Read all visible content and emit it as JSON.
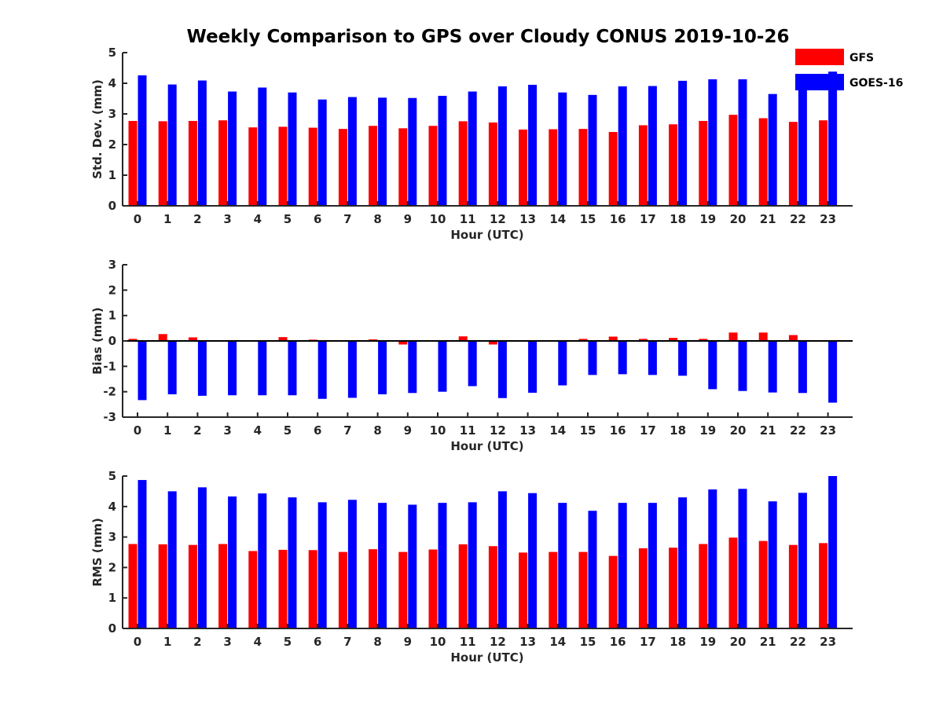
{
  "figure": {
    "title": "Weekly Comparison to GPS over Cloudy CONUS 2019-10-26"
  },
  "legend": {
    "placement": "top-right",
    "entries": [
      {
        "name": "GFS",
        "color": "#ff0000"
      },
      {
        "name": "GOES-16",
        "color": "#0000ff"
      }
    ]
  },
  "chart_data": [
    {
      "type": "bar",
      "xlabel": "Hour (UTC)",
      "ylabel": "Std. Dev. (mm)",
      "ylim": [
        0,
        5
      ],
      "yticks": [
        0,
        1,
        2,
        3,
        4,
        5
      ],
      "categories": [
        "0",
        "1",
        "2",
        "3",
        "4",
        "5",
        "6",
        "7",
        "8",
        "9",
        "10",
        "11",
        "12",
        "13",
        "14",
        "15",
        "16",
        "17",
        "18",
        "19",
        "20",
        "21",
        "22",
        "23"
      ],
      "series": [
        {
          "name": "GFS",
          "color": "#ff0000",
          "values": [
            2.77,
            2.76,
            2.77,
            2.79,
            2.56,
            2.58,
            2.55,
            2.51,
            2.61,
            2.53,
            2.61,
            2.76,
            2.72,
            2.49,
            2.5,
            2.51,
            2.41,
            2.63,
            2.66,
            2.77,
            2.97,
            2.86,
            2.74,
            2.79
          ]
        },
        {
          "name": "GOES-16",
          "color": "#0000ff",
          "values": [
            4.26,
            3.96,
            4.09,
            3.73,
            3.86,
            3.7,
            3.47,
            3.55,
            3.53,
            3.52,
            3.59,
            3.73,
            3.9,
            3.95,
            3.7,
            3.62,
            3.9,
            3.91,
            4.08,
            4.13,
            4.13,
            3.65,
            3.94,
            4.38
          ]
        }
      ]
    },
    {
      "type": "bar",
      "xlabel": "Hour (UTC)",
      "ylabel": "Bias (mm)",
      "ylim": [
        -3,
        3
      ],
      "yticks": [
        -3,
        -2,
        -1,
        0,
        1,
        2,
        3
      ],
      "categories": [
        "0",
        "1",
        "2",
        "3",
        "4",
        "5",
        "6",
        "7",
        "8",
        "9",
        "10",
        "11",
        "12",
        "13",
        "14",
        "15",
        "16",
        "17",
        "18",
        "19",
        "20",
        "21",
        "22",
        "23"
      ],
      "series": [
        {
          "name": "GFS",
          "color": "#ff0000",
          "values": [
            0.08,
            0.27,
            0.14,
            0.0,
            0.02,
            0.15,
            0.05,
            0.0,
            0.06,
            -0.14,
            0.0,
            0.18,
            -0.14,
            0.03,
            0.0,
            0.08,
            0.17,
            0.08,
            0.12,
            0.08,
            0.33,
            0.33,
            0.23,
            0.03
          ]
        },
        {
          "name": "GOES-16",
          "color": "#0000ff",
          "values": [
            -2.33,
            -2.1,
            -2.16,
            -2.14,
            -2.14,
            -2.14,
            -2.28,
            -2.24,
            -2.1,
            -2.05,
            -2.0,
            -1.78,
            -2.25,
            -2.04,
            -1.75,
            -1.34,
            -1.31,
            -1.34,
            -1.37,
            -1.9,
            -1.97,
            -2.03,
            -2.05,
            -2.43
          ]
        }
      ]
    },
    {
      "type": "bar",
      "xlabel": "Hour (UTC)",
      "ylabel": "RMS (mm)",
      "ylim": [
        0,
        5
      ],
      "yticks": [
        0,
        1,
        2,
        3,
        4,
        5
      ],
      "categories": [
        "0",
        "1",
        "2",
        "3",
        "4",
        "5",
        "6",
        "7",
        "8",
        "9",
        "10",
        "11",
        "12",
        "13",
        "14",
        "15",
        "16",
        "17",
        "18",
        "19",
        "20",
        "21",
        "22",
        "23"
      ],
      "series": [
        {
          "name": "GFS",
          "color": "#ff0000",
          "values": [
            2.77,
            2.76,
            2.74,
            2.77,
            2.54,
            2.58,
            2.57,
            2.51,
            2.6,
            2.51,
            2.59,
            2.76,
            2.7,
            2.49,
            2.51,
            2.51,
            2.38,
            2.63,
            2.65,
            2.77,
            2.98,
            2.87,
            2.74,
            2.8
          ]
        },
        {
          "name": "GOES-16",
          "color": "#0000ff",
          "values": [
            4.87,
            4.5,
            4.63,
            4.33,
            4.43,
            4.3,
            4.14,
            4.22,
            4.12,
            4.06,
            4.12,
            4.14,
            4.5,
            4.44,
            4.12,
            3.86,
            4.12,
            4.12,
            4.3,
            4.56,
            4.58,
            4.17,
            4.45,
            5.0
          ]
        }
      ]
    }
  ]
}
